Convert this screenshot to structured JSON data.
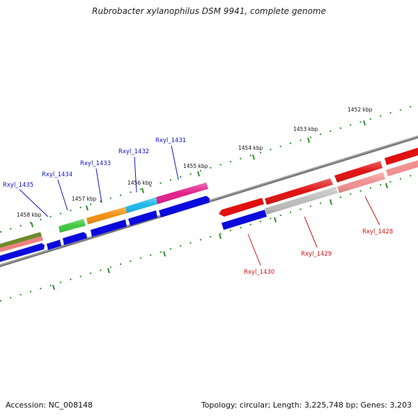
{
  "title": "Rubrobacter xylanophilus DSM 9941, complete genome",
  "footer": {
    "accession": "Accession: NC_008148",
    "summary": "Topology: circular; Length: 3,225,748 bp; Genes: 3,203"
  },
  "kbp_ticks": [
    {
      "label": "1452 kbp"
    },
    {
      "label": "1453 kbp"
    },
    {
      "label": "1454 kbp"
    },
    {
      "label": "1455 kbp"
    },
    {
      "label": "1456 kbp"
    },
    {
      "label": "1457 kbp"
    },
    {
      "label": "1458 kbp"
    }
  ],
  "gene_labels": [
    {
      "text": "Rxyl_1428",
      "color": "red"
    },
    {
      "text": "Rxyl_1429",
      "color": "red"
    },
    {
      "text": "Rxyl_1430",
      "color": "red"
    },
    {
      "text": "Rxyl_1431",
      "color": "blue"
    },
    {
      "text": "Rxyl_1432",
      "color": "blue"
    },
    {
      "text": "Rxyl_1433",
      "color": "blue"
    },
    {
      "text": "Rxyl_1434",
      "color": "blue"
    },
    {
      "text": "Rxyl_1435",
      "color": "blue"
    }
  ],
  "colors": {
    "backbone": "#808080",
    "tick": "#2e8b2e",
    "forward_blue": "#0a0adc",
    "red": "#e01010",
    "light_red": "#f09090",
    "gray": "#bdbdbd",
    "pink": "#e0208a",
    "cyan": "#20b8e8",
    "orange": "#f29010",
    "green": "#40c840",
    "olive": "#6e8a2a",
    "salmon": "#f08080"
  }
}
